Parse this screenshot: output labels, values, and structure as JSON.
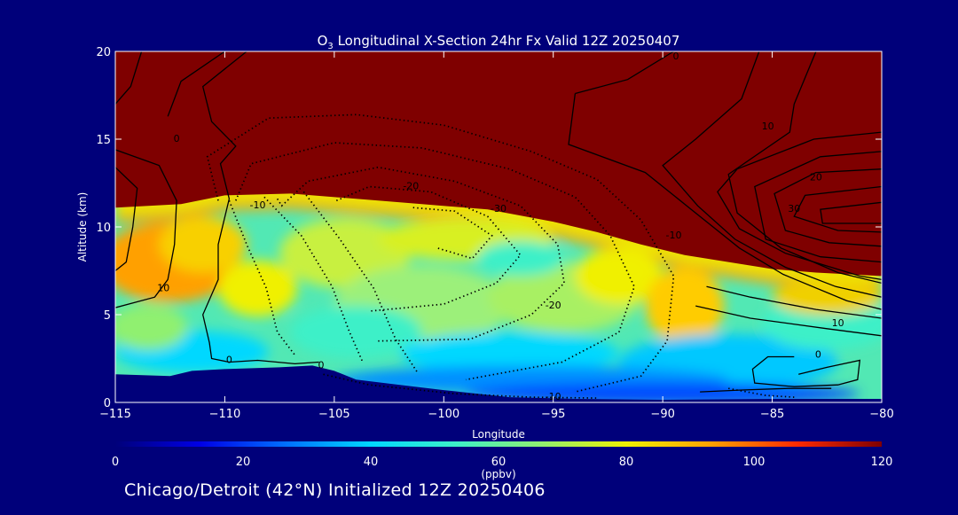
{
  "colors": {
    "background": "#00007a",
    "frame": "#ffffff",
    "contour": "#000000"
  },
  "footer": {
    "text": "Chicago/Detroit (42°N) Initialized 12Z 20250406"
  },
  "chart_data": {
    "type": "heatmap",
    "title": {
      "species": "O",
      "species_subscript": "3",
      "rest": " Longitudinal X-Section 24hr  Fx Valid 12Z 20250407"
    },
    "xlabel": "Longitude",
    "ylabel": "Altitude (km)",
    "xlim": [
      -115,
      -80
    ],
    "ylim": [
      0,
      20
    ],
    "x_ticks": [
      -115,
      -110,
      -105,
      -100,
      -95,
      -90,
      -85,
      -80
    ],
    "x_tick_labels": [
      "−115",
      "−110",
      "−105",
      "−100",
      "−95",
      "−90",
      "−85",
      "−80"
    ],
    "y_ticks": [
      0,
      5,
      10,
      15,
      20
    ],
    "y_tick_labels": [
      "0",
      "5",
      "10",
      "15",
      "20"
    ],
    "colorbar": {
      "min": 0,
      "max": 120,
      "ticks": [
        0,
        20,
        40,
        60,
        80,
        100,
        120
      ],
      "tick_labels": [
        "0",
        "20",
        "40",
        "60",
        "80",
        "100",
        "120"
      ],
      "unit_label": "(ppbv)",
      "stops": [
        "#00007a",
        "#0000e6",
        "#0070ff",
        "#00d8ff",
        "#3cf0c8",
        "#90f070",
        "#f0f000",
        "#ffa000",
        "#ff2a00",
        "#7f0000"
      ]
    },
    "terrain": [
      [
        -115,
        1.6
      ],
      [
        -112.5,
        1.5
      ],
      [
        -111.5,
        1.8
      ],
      [
        -110,
        1.9
      ],
      [
        -107.5,
        2.0
      ],
      [
        -106,
        2.1
      ],
      [
        -105,
        1.8
      ],
      [
        -104,
        1.3
      ],
      [
        -102,
        1.0
      ],
      [
        -100,
        0.7
      ],
      [
        -97,
        0.3
      ],
      [
        -94,
        0.2
      ],
      [
        -90,
        0.15
      ],
      [
        -85,
        0.2
      ],
      [
        -82,
        0.2
      ],
      [
        -80,
        0.2
      ]
    ],
    "tropopause": [
      [
        -115,
        11.1
      ],
      [
        -112,
        11.3
      ],
      [
        -110,
        11.8
      ],
      [
        -107,
        11.9
      ],
      [
        -104,
        11.6
      ],
      [
        -101,
        11.3
      ],
      [
        -98,
        11.0
      ],
      [
        -95,
        10.3
      ],
      [
        -93,
        9.7
      ],
      [
        -91,
        9.0
      ],
      [
        -89,
        8.4
      ],
      [
        -87,
        8.0
      ],
      [
        -85,
        7.6
      ],
      [
        -83,
        7.4
      ],
      [
        -80,
        7.2
      ]
    ],
    "contour_labels": [
      {
        "lon": -108.5,
        "alt": 11.2,
        "text": "-10"
      },
      {
        "lon": -101.5,
        "alt": 12.3,
        "text": "-20"
      },
      {
        "lon": -97.5,
        "alt": 11.0,
        "text": "-30"
      },
      {
        "lon": -95,
        "alt": 5.5,
        "text": "-20"
      },
      {
        "lon": -95,
        "alt": 0.3,
        "text": "-10"
      },
      {
        "lon": -89.5,
        "alt": 9.5,
        "text": "-10"
      },
      {
        "lon": -112.8,
        "alt": 6.5,
        "text": "10"
      },
      {
        "lon": -109.8,
        "alt": 2.4,
        "text": "0"
      },
      {
        "lon": -105.6,
        "alt": 2.1,
        "text": "0"
      },
      {
        "lon": -112.2,
        "alt": 15.0,
        "text": "0"
      },
      {
        "lon": -89.4,
        "alt": 19.7,
        "text": "0"
      },
      {
        "lon": -85.2,
        "alt": 15.7,
        "text": "10"
      },
      {
        "lon": -83.0,
        "alt": 12.8,
        "text": "20"
      },
      {
        "lon": -84.0,
        "alt": 11.0,
        "text": "30"
      },
      {
        "lon": -82.0,
        "alt": 4.5,
        "text": "10"
      },
      {
        "lon": -82.9,
        "alt": 2.7,
        "text": "0"
      }
    ]
  }
}
